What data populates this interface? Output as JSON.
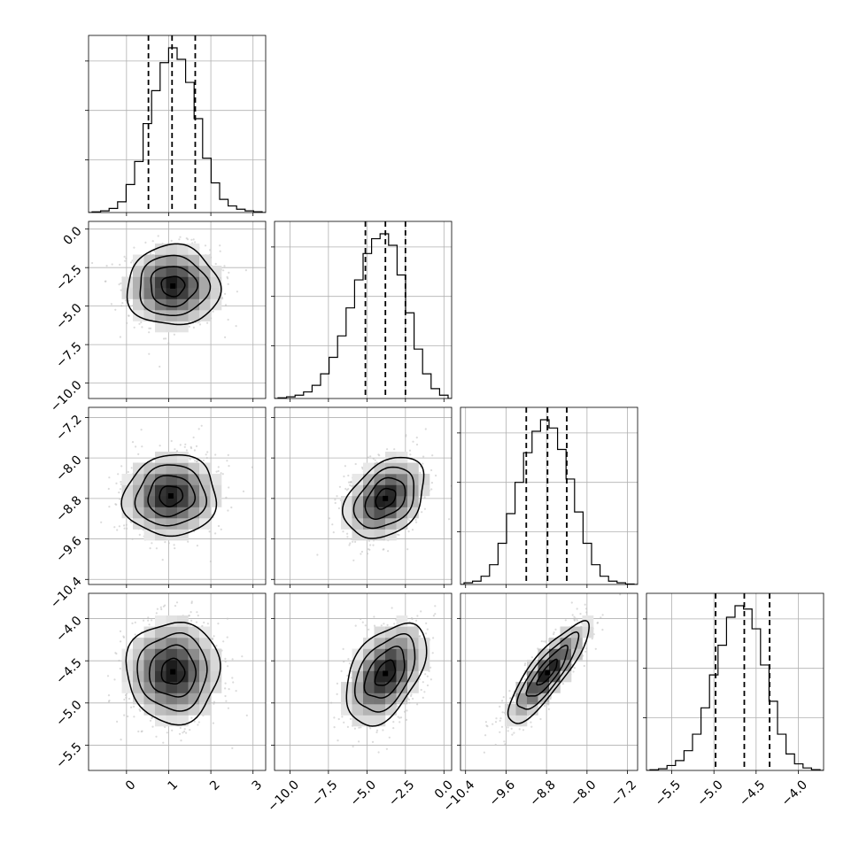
{
  "chart_data": {
    "type": "corner",
    "grid": true,
    "n_params": 4,
    "parameters": [
      {
        "range": [
          -0.9,
          3.3
        ],
        "ticks": [
          "0",
          "1",
          "2",
          "3"
        ],
        "tick_values": [
          0,
          1,
          2,
          3
        ],
        "quantiles": [
          0.52,
          1.08,
          1.63
        ],
        "median": 1.08,
        "hist": [
          0.004,
          0.01,
          0.025,
          0.065,
          0.17,
          0.31,
          0.54,
          0.74,
          0.91,
          1.0,
          0.93,
          0.79,
          0.57,
          0.33,
          0.18,
          0.08,
          0.04,
          0.02,
          0.01,
          0.005
        ]
      },
      {
        "range": [
          -11.0,
          0.5
        ],
        "ticks": [
          "0.0",
          "−2.5",
          "−5.0",
          "−7.5",
          "−10.0"
        ],
        "tick_values": [
          0.0,
          -2.5,
          -5.0,
          -7.5,
          -10.0
        ],
        "x_ticks": [
          "−10.0",
          "−7.5",
          "−5.0",
          "−2.5",
          "0.0"
        ],
        "x_tick_values": [
          -10.0,
          -7.5,
          -5.0,
          -2.5,
          0.0
        ],
        "quantiles": [
          -5.1,
          -3.8,
          -2.5
        ],
        "median": -3.8,
        "hist": [
          0.004,
          0.01,
          0.02,
          0.04,
          0.08,
          0.15,
          0.25,
          0.38,
          0.55,
          0.72,
          0.88,
          0.97,
          1.0,
          0.93,
          0.75,
          0.52,
          0.3,
          0.15,
          0.06,
          0.02
        ]
      },
      {
        "range": [
          -10.5,
          -7.0
        ],
        "ticks": [
          "−7.2",
          "−8.0",
          "−8.8",
          "−9.6",
          "−10.4"
        ],
        "tick_values": [
          -7.2,
          -8.0,
          -8.8,
          -9.6,
          -10.4
        ],
        "x_ticks": [
          "−10.4",
          "−9.6",
          "−8.8",
          "−8.0",
          "−7.2"
        ],
        "x_tick_values": [
          -10.4,
          -9.6,
          -8.8,
          -8.0,
          -7.2
        ],
        "quantiles": [
          -9.2,
          -8.78,
          -8.4
        ],
        "median": -8.78,
        "hist": [
          0.01,
          0.02,
          0.05,
          0.12,
          0.25,
          0.43,
          0.62,
          0.8,
          0.93,
          1.0,
          0.95,
          0.82,
          0.64,
          0.44,
          0.25,
          0.12,
          0.05,
          0.02,
          0.01,
          0.003
        ]
      },
      {
        "range": [
          -5.8,
          -3.7
        ],
        "ticks": [
          "−4.0",
          "−4.5",
          "−5.0",
          "−5.5"
        ],
        "tick_values": [
          -4.0,
          -4.5,
          -5.0,
          -5.5
        ],
        "x_ticks": [
          "−5.5",
          "−5.0",
          "−4.5",
          "−4.0"
        ],
        "x_tick_values": [
          -5.5,
          -5.0,
          -4.5,
          -4.0
        ],
        "quantiles": [
          -4.98,
          -4.64,
          -4.34
        ],
        "median": -4.64,
        "hist": [
          0.004,
          0.01,
          0.03,
          0.06,
          0.12,
          0.22,
          0.38,
          0.58,
          0.76,
          0.93,
          1.0,
          0.98,
          0.86,
          0.64,
          0.42,
          0.22,
          0.1,
          0.04,
          0.015,
          0.005
        ]
      }
    ],
    "pairs": [
      {
        "row": 1,
        "col": 0,
        "mean": [
          1.1,
          -3.7
        ],
        "sd": [
          0.55,
          1.3
        ],
        "corr": 0.0
      },
      {
        "row": 2,
        "col": 0,
        "mean": [
          1.05,
          -8.75
        ],
        "sd": [
          0.55,
          0.4
        ],
        "corr": 0.05
      },
      {
        "row": 2,
        "col": 1,
        "mean": [
          -3.8,
          -8.8
        ],
        "sd": [
          1.3,
          0.4
        ],
        "corr": 0.35
      },
      {
        "row": 3,
        "col": 0,
        "mean": [
          1.1,
          -4.63
        ],
        "sd": [
          0.55,
          0.3
        ],
        "corr": 0.0
      },
      {
        "row": 3,
        "col": 1,
        "mean": [
          -3.8,
          -4.65
        ],
        "sd": [
          1.3,
          0.3
        ],
        "corr": 0.45
      },
      {
        "row": 3,
        "col": 2,
        "mean": [
          -8.78,
          -4.64
        ],
        "sd": [
          0.4,
          0.3
        ],
        "corr": 0.85
      }
    ],
    "contour_sigma_levels": [
      0.5,
      1.0,
      1.5,
      2.0
    ]
  }
}
